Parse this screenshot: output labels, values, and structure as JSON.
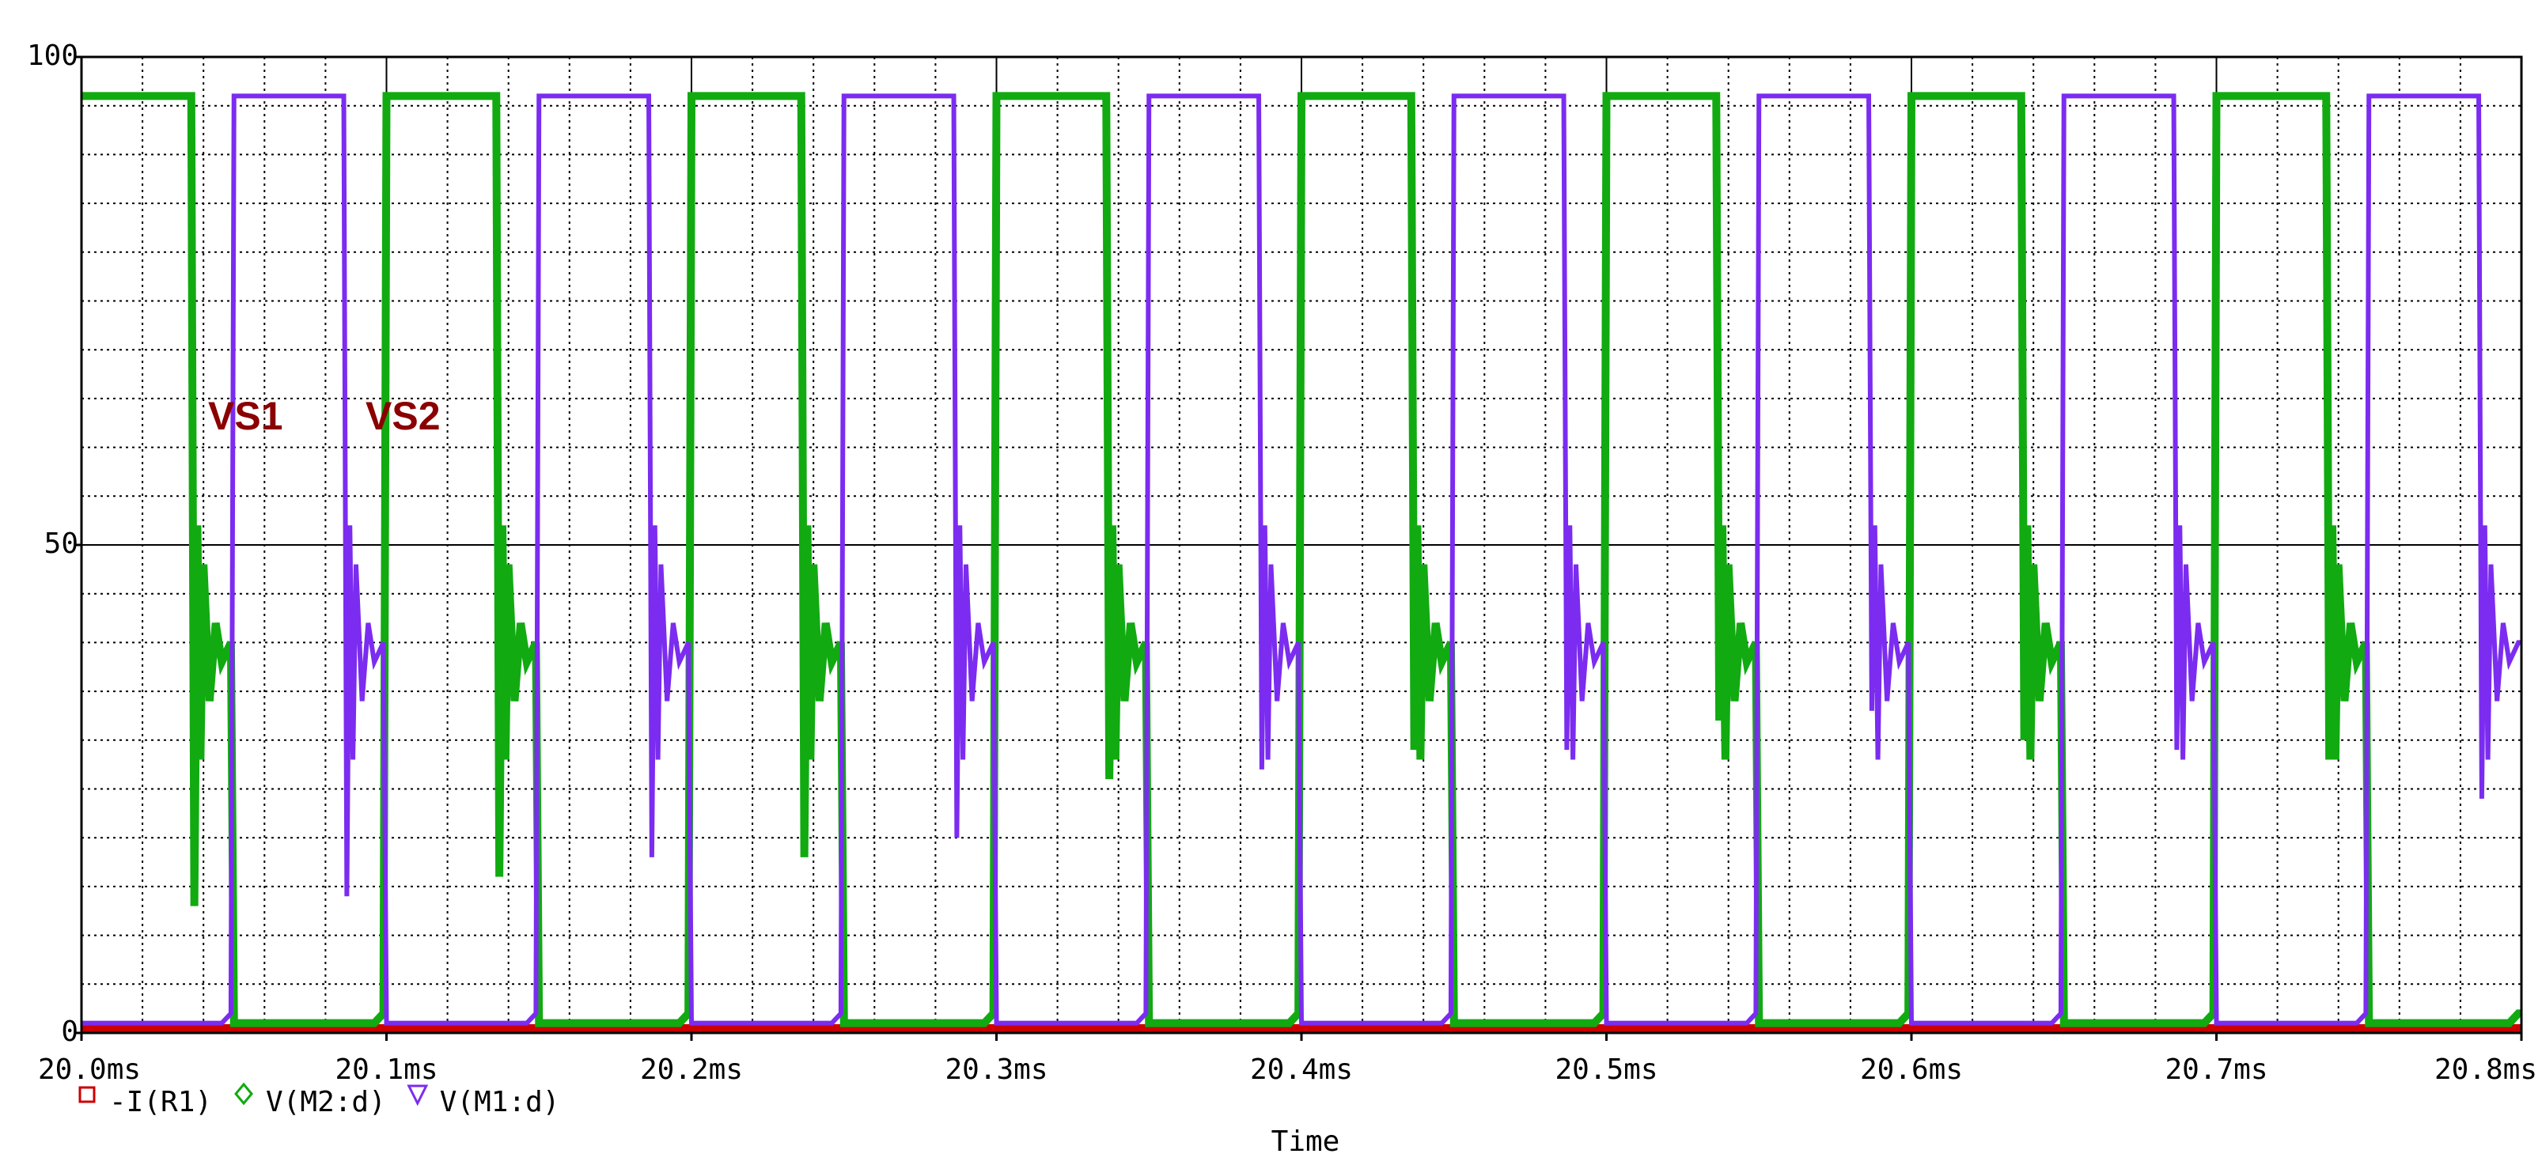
{
  "chart_data": {
    "type": "line",
    "x_label": "Time",
    "xlim": [
      20.0,
      20.8
    ],
    "xticks": [
      {
        "value": 20.0,
        "label": "20.0ms"
      },
      {
        "value": 20.1,
        "label": "20.1ms"
      },
      {
        "value": 20.2,
        "label": "20.2ms"
      },
      {
        "value": 20.3,
        "label": "20.3ms"
      },
      {
        "value": 20.4,
        "label": "20.4ms"
      },
      {
        "value": 20.5,
        "label": "20.5ms"
      },
      {
        "value": 20.6,
        "label": "20.6ms"
      },
      {
        "value": 20.7,
        "label": "20.7ms"
      },
      {
        "value": 20.8,
        "label": "20.8ms"
      }
    ],
    "ylim": [
      0,
      100
    ],
    "yticks": [
      0,
      50,
      100
    ],
    "grid": true,
    "x_minor_divisions": 5,
    "y_minor_divisions": 5,
    "annotations": [
      {
        "text": "VS1",
        "color": "#8b0000"
      },
      {
        "text": "VS2",
        "color": "#8b0000"
      }
    ],
    "x": [
      20.0,
      20.001,
      20.034,
      20.036,
      20.037,
      20.038,
      20.039,
      20.04,
      20.042,
      20.044,
      20.046,
      20.049,
      20.05,
      20.051,
      20.084,
      20.086,
      20.087,
      20.088,
      20.089,
      20.09,
      20.092,
      20.094,
      20.096,
      20.099,
      20.1,
      20.101,
      20.134,
      20.136,
      20.137,
      20.138,
      20.139,
      20.14,
      20.142,
      20.144,
      20.146,
      20.149,
      20.15,
      20.151,
      20.184,
      20.186,
      20.187,
      20.188,
      20.189,
      20.19,
      20.192,
      20.194,
      20.196,
      20.199,
      20.2,
      20.201,
      20.234,
      20.236,
      20.237,
      20.238,
      20.239,
      20.24,
      20.242,
      20.244,
      20.246,
      20.249,
      20.25,
      20.251,
      20.284,
      20.286,
      20.287,
      20.288,
      20.289,
      20.29,
      20.292,
      20.294,
      20.296,
      20.299,
      20.3,
      20.301,
      20.334,
      20.336,
      20.337,
      20.338,
      20.339,
      20.34,
      20.342,
      20.344,
      20.346,
      20.349,
      20.35,
      20.351,
      20.384,
      20.386,
      20.387,
      20.388,
      20.389,
      20.39,
      20.392,
      20.394,
      20.396,
      20.399,
      20.4,
      20.401,
      20.434,
      20.436,
      20.437,
      20.438,
      20.439,
      20.44,
      20.442,
      20.444,
      20.446,
      20.449,
      20.45,
      20.451,
      20.484,
      20.486,
      20.487,
      20.488,
      20.489,
      20.49,
      20.492,
      20.494,
      20.496,
      20.499,
      20.5,
      20.501,
      20.534,
      20.536,
      20.537,
      20.538,
      20.539,
      20.54,
      20.542,
      20.544,
      20.546,
      20.549,
      20.55,
      20.551,
      20.584,
      20.586,
      20.587,
      20.588,
      20.589,
      20.59,
      20.592,
      20.594,
      20.596,
      20.599,
      20.6,
      20.601,
      20.634,
      20.636,
      20.637,
      20.638,
      20.639,
      20.64,
      20.642,
      20.644,
      20.646,
      20.649,
      20.65,
      20.651,
      20.684,
      20.686,
      20.687,
      20.688,
      20.689,
      20.69,
      20.692,
      20.694,
      20.696,
      20.699,
      20.7,
      20.701,
      20.734,
      20.736,
      20.737,
      20.738,
      20.739,
      20.74,
      20.742,
      20.744,
      20.746,
      20.749,
      20.75,
      20.751,
      20.784,
      20.786,
      20.787,
      20.788,
      20.789,
      20.79,
      20.792,
      20.794,
      20.796,
      20.799,
      20.8
    ],
    "series": [
      {
        "name": "-I(R1)",
        "color": "#cc0000",
        "marker": "square",
        "x": [
          20.0,
          20.8
        ],
        "values": [
          0.5,
          0.5
        ]
      },
      {
        "name": "V(M2:d)",
        "color": "#11aa11",
        "marker": "diamond",
        "values": [
          96,
          96,
          96,
          96,
          13,
          52,
          28,
          48,
          34,
          42,
          38,
          40,
          1,
          1,
          1,
          1,
          1,
          1,
          1,
          1,
          1,
          1,
          1,
          2,
          96,
          96,
          96,
          96,
          16,
          52,
          28,
          48,
          34,
          42,
          38,
          40,
          1,
          1,
          1,
          1,
          1,
          1,
          1,
          1,
          1,
          1,
          1,
          2,
          96,
          96,
          96,
          96,
          18,
          52,
          28,
          48,
          34,
          42,
          38,
          40,
          1,
          1,
          1,
          1,
          1,
          1,
          1,
          1,
          1,
          1,
          1,
          2,
          96,
          96,
          96,
          96,
          26,
          52,
          28,
          48,
          34,
          42,
          38,
          40,
          1,
          1,
          1,
          1,
          1,
          1,
          1,
          1,
          1,
          1,
          1,
          2,
          96,
          96,
          96,
          96,
          29,
          52,
          28,
          48,
          34,
          42,
          38,
          40,
          1,
          1,
          1,
          1,
          1,
          1,
          1,
          1,
          1,
          1,
          1,
          2,
          96,
          96,
          96,
          96,
          32,
          52,
          28,
          48,
          34,
          42,
          38,
          40,
          1,
          1,
          1,
          1,
          1,
          1,
          1,
          1,
          1,
          1,
          1,
          2,
          96,
          96,
          96,
          96,
          30,
          52,
          28,
          48,
          34,
          42,
          38,
          40,
          1,
          1,
          1,
          1,
          1,
          1,
          1,
          1,
          1,
          1,
          1,
          2,
          96,
          96,
          96,
          96,
          28,
          52,
          28,
          48,
          34,
          42,
          38,
          40,
          1,
          1,
          1,
          1,
          1,
          1,
          1,
          1,
          1,
          1,
          1,
          2,
          2
        ]
      },
      {
        "name": "V(M1:d)",
        "color": "#7b2cf0",
        "marker": "triangle",
        "values": [
          1,
          1,
          1,
          1,
          1,
          1,
          1,
          1,
          1,
          1,
          1,
          2,
          96,
          96,
          96,
          96,
          14,
          52,
          28,
          48,
          34,
          42,
          38,
          40,
          1,
          1,
          1,
          1,
          1,
          1,
          1,
          1,
          1,
          1,
          1,
          2,
          96,
          96,
          96,
          96,
          18,
          52,
          28,
          48,
          34,
          42,
          38,
          40,
          1,
          1,
          1,
          1,
          1,
          1,
          1,
          1,
          1,
          1,
          1,
          2,
          96,
          96,
          96,
          96,
          20,
          52,
          28,
          48,
          34,
          42,
          38,
          40,
          1,
          1,
          1,
          1,
          1,
          1,
          1,
          1,
          1,
          1,
          1,
          2,
          96,
          96,
          96,
          96,
          27,
          52,
          28,
          48,
          34,
          42,
          38,
          40,
          1,
          1,
          1,
          1,
          1,
          1,
          1,
          1,
          1,
          1,
          1,
          2,
          96,
          96,
          96,
          96,
          29,
          52,
          28,
          48,
          34,
          42,
          38,
          40,
          1,
          1,
          1,
          1,
          1,
          1,
          1,
          1,
          1,
          1,
          1,
          2,
          96,
          96,
          96,
          96,
          33,
          52,
          28,
          48,
          34,
          42,
          38,
          40,
          1,
          1,
          1,
          1,
          1,
          1,
          1,
          1,
          1,
          1,
          1,
          2,
          96,
          96,
          96,
          96,
          29,
          52,
          28,
          48,
          34,
          42,
          38,
          40,
          1,
          1,
          1,
          1,
          1,
          1,
          1,
          1,
          1,
          1,
          1,
          2,
          96,
          96,
          96,
          96,
          24,
          52,
          28,
          48,
          34,
          42,
          38,
          40,
          40
        ]
      }
    ]
  }
}
